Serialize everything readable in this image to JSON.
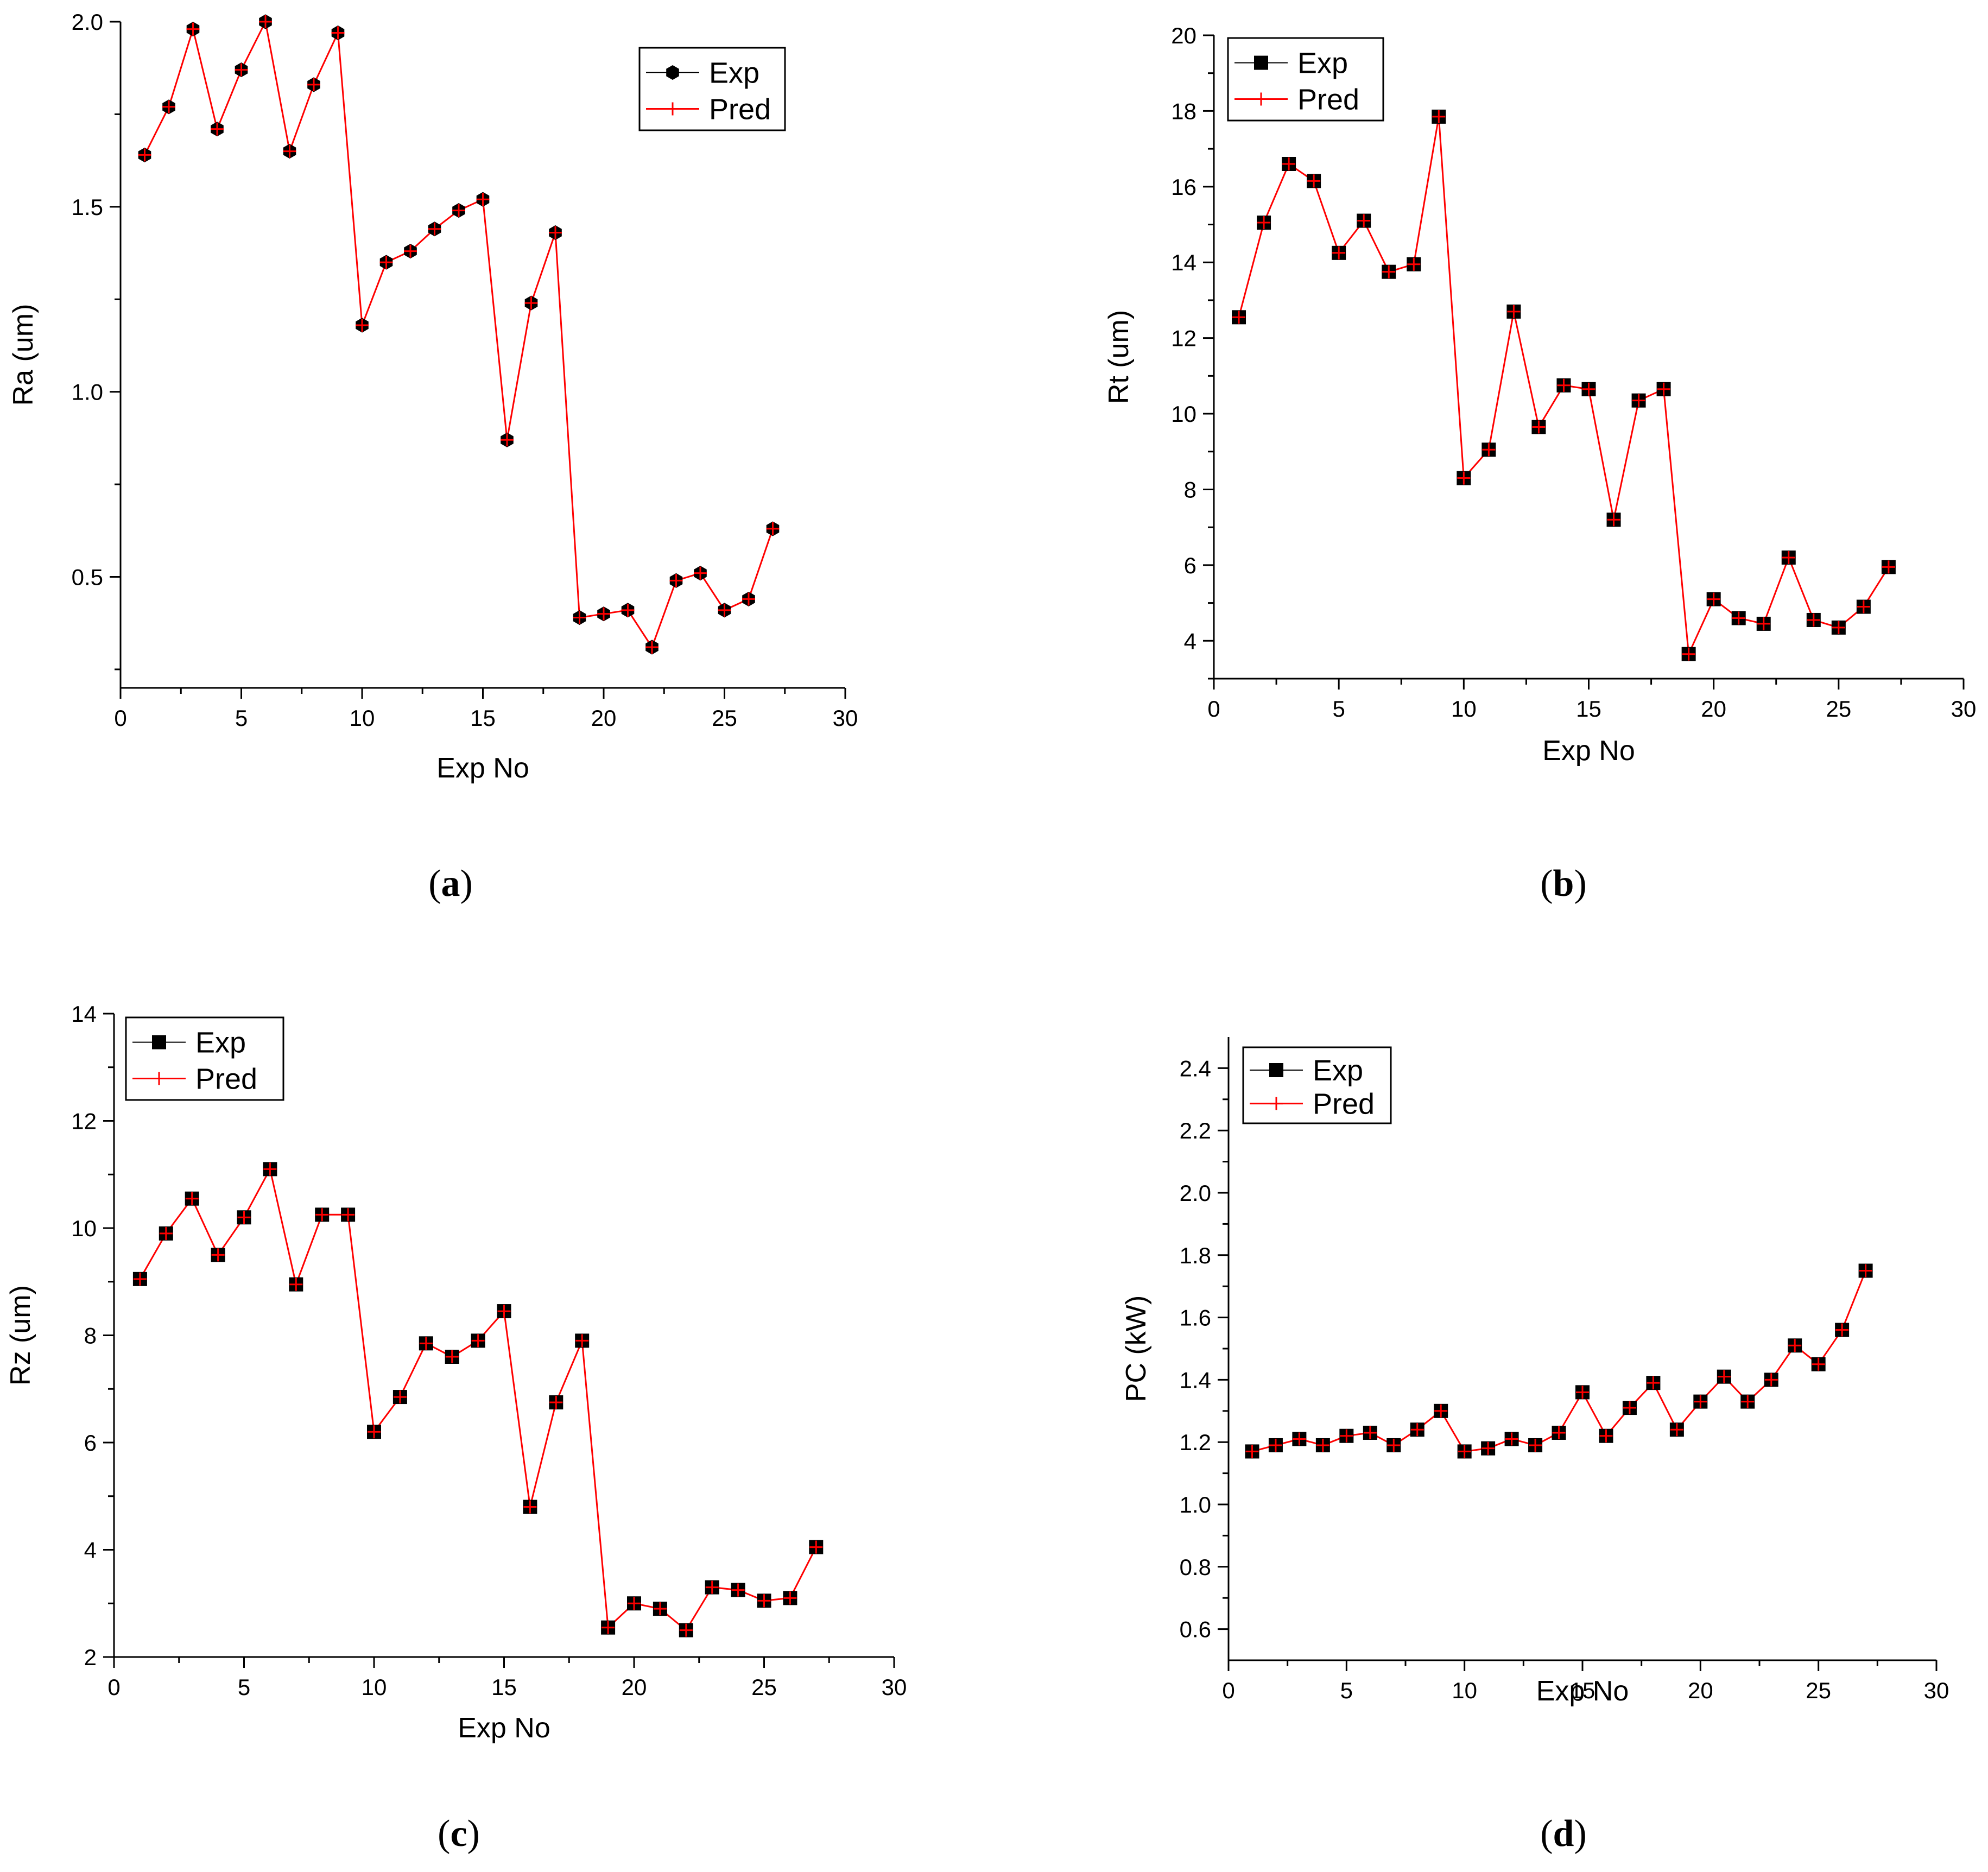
{
  "figure": {
    "colors": {
      "exp_marker": "#000000",
      "exp_line": "#000000",
      "pred": "#ff0000"
    }
  },
  "chart_data": [
    {
      "id": "a",
      "type": "line",
      "caption": "a",
      "xlabel": "Exp No",
      "ylabel": "Ra (um)",
      "xlim": [
        0,
        30
      ],
      "ylim": [
        0.2,
        2.0
      ],
      "xticks": [
        "0",
        "5",
        "10",
        "15",
        "20",
        "25",
        "30"
      ],
      "xtick_values": [
        0,
        5,
        10,
        15,
        20,
        25,
        30
      ],
      "yticks": [
        "0.5",
        "1.0",
        "1.5",
        "2.0"
      ],
      "ytick_values": [
        0.5,
        1.0,
        1.5,
        2.0
      ],
      "marker": "hexagon",
      "legend": [
        "Exp",
        "Pred"
      ],
      "x": [
        1,
        2,
        3,
        4,
        5,
        6,
        7,
        8,
        9,
        10,
        11,
        12,
        13,
        14,
        15,
        16,
        17,
        18,
        19,
        20,
        21,
        22,
        23,
        24,
        25,
        26,
        27
      ],
      "series": [
        {
          "name": "Exp",
          "values": [
            1.64,
            1.77,
            1.98,
            1.71,
            1.87,
            2.0,
            1.65,
            1.83,
            1.97,
            1.18,
            1.35,
            1.38,
            1.44,
            1.49,
            1.52,
            0.87,
            1.24,
            1.43,
            0.39,
            0.4,
            0.41,
            0.31,
            0.49,
            0.51,
            0.41,
            0.44,
            0.63
          ]
        },
        {
          "name": "Pred",
          "values": [
            1.64,
            1.77,
            1.98,
            1.71,
            1.87,
            2.0,
            1.65,
            1.83,
            1.97,
            1.18,
            1.35,
            1.38,
            1.44,
            1.49,
            1.52,
            0.87,
            1.24,
            1.43,
            0.39,
            0.4,
            0.41,
            0.31,
            0.49,
            0.51,
            0.41,
            0.44,
            0.63
          ]
        }
      ]
    },
    {
      "id": "b",
      "type": "line",
      "caption": "b",
      "xlabel": "Exp No",
      "ylabel": "Rt (um)",
      "xlim": [
        0,
        30
      ],
      "ylim": [
        3,
        20
      ],
      "xticks": [
        "0",
        "5",
        "10",
        "15",
        "20",
        "25",
        "30"
      ],
      "xtick_values": [
        0,
        5,
        10,
        15,
        20,
        25,
        30
      ],
      "yticks": [
        "4",
        "6",
        "8",
        "10",
        "12",
        "14",
        "16",
        "18",
        "20"
      ],
      "ytick_values": [
        4,
        6,
        8,
        10,
        12,
        14,
        16,
        18,
        20
      ],
      "marker": "square",
      "legend": [
        "Exp",
        "Pred"
      ],
      "x": [
        1,
        2,
        3,
        4,
        5,
        6,
        7,
        8,
        9,
        10,
        11,
        12,
        13,
        14,
        15,
        16,
        17,
        18,
        19,
        20,
        21,
        22,
        23,
        24,
        25,
        26,
        27
      ],
      "series": [
        {
          "name": "Exp",
          "values": [
            12.55,
            15.05,
            16.6,
            16.15,
            14.25,
            15.1,
            13.75,
            13.95,
            17.85,
            8.3,
            9.05,
            12.7,
            9.65,
            10.75,
            10.65,
            7.2,
            10.35,
            10.65,
            3.65,
            5.1,
            4.6,
            4.45,
            6.2,
            4.55,
            4.35,
            4.9,
            5.95
          ]
        },
        {
          "name": "Pred",
          "values": [
            12.55,
            15.05,
            16.6,
            16.15,
            14.25,
            15.1,
            13.75,
            13.95,
            17.85,
            8.3,
            9.05,
            12.7,
            9.65,
            10.75,
            10.65,
            7.2,
            10.35,
            10.65,
            3.65,
            5.1,
            4.6,
            4.45,
            6.2,
            4.55,
            4.35,
            4.9,
            5.95
          ]
        }
      ]
    },
    {
      "id": "c",
      "type": "line",
      "caption": "c",
      "xlabel": "Exp No",
      "ylabel": "Rz (um)",
      "xlim": [
        0,
        30
      ],
      "ylim": [
        2,
        14
      ],
      "xticks": [
        "0",
        "5",
        "10",
        "15",
        "20",
        "25",
        "30"
      ],
      "xtick_values": [
        0,
        5,
        10,
        15,
        20,
        25,
        30
      ],
      "yticks": [
        "2",
        "4",
        "6",
        "8",
        "10",
        "12",
        "14"
      ],
      "ytick_values": [
        2,
        4,
        6,
        8,
        10,
        12,
        14
      ],
      "marker": "square",
      "legend": [
        "Exp",
        "Pred"
      ],
      "x": [
        1,
        2,
        3,
        4,
        5,
        6,
        7,
        8,
        9,
        10,
        11,
        12,
        13,
        14,
        15,
        16,
        17,
        18,
        19,
        20,
        21,
        22,
        23,
        24,
        25,
        26,
        27
      ],
      "series": [
        {
          "name": "Exp",
          "values": [
            9.05,
            9.9,
            10.55,
            9.5,
            10.2,
            11.1,
            8.95,
            10.25,
            10.25,
            6.2,
            6.85,
            7.85,
            7.6,
            7.9,
            8.45,
            4.8,
            6.75,
            7.9,
            2.55,
            3.0,
            2.9,
            2.5,
            3.3,
            3.25,
            3.05,
            3.1,
            4.05
          ]
        },
        {
          "name": "Pred",
          "values": [
            9.05,
            9.9,
            10.55,
            9.5,
            10.2,
            11.1,
            8.95,
            10.25,
            10.25,
            6.2,
            6.85,
            7.85,
            7.6,
            7.9,
            8.45,
            4.8,
            6.75,
            7.9,
            2.55,
            3.0,
            2.9,
            2.5,
            3.3,
            3.25,
            3.05,
            3.1,
            4.05
          ]
        }
      ]
    },
    {
      "id": "d",
      "type": "line",
      "caption": "d",
      "xlabel": "Exp No",
      "ylabel": "PC (kW)",
      "xlim": [
        0,
        30
      ],
      "ylim": [
        0.5,
        2.5
      ],
      "xticks": [
        "0",
        "5",
        "10",
        "15",
        "20",
        "25",
        "30"
      ],
      "xtick_values": [
        0,
        5,
        10,
        15,
        20,
        25,
        30
      ],
      "yticks": [
        "0.6",
        "0.8",
        "1.0",
        "1.2",
        "1.4",
        "1.6",
        "1.8",
        "2.0",
        "2.2",
        "2.4"
      ],
      "ytick_values": [
        0.6,
        0.8,
        1.0,
        1.2,
        1.4,
        1.6,
        1.8,
        2.0,
        2.2,
        2.4
      ],
      "marker": "square",
      "legend": [
        "Exp",
        "Pred"
      ],
      "x": [
        1,
        2,
        3,
        4,
        5,
        6,
        7,
        8,
        9,
        10,
        11,
        12,
        13,
        14,
        15,
        16,
        17,
        18,
        19,
        20,
        21,
        22,
        23,
        24,
        25,
        26,
        27
      ],
      "series": [
        {
          "name": "Exp",
          "values": [
            1.17,
            1.19,
            1.21,
            1.19,
            1.22,
            1.23,
            1.19,
            1.24,
            1.3,
            1.17,
            1.18,
            1.21,
            1.19,
            1.23,
            1.36,
            1.22,
            1.31,
            1.39,
            1.24,
            1.33,
            1.41,
            1.33,
            1.4,
            1.51,
            1.45,
            1.56,
            1.75
          ]
        },
        {
          "name": "Pred",
          "values": [
            1.17,
            1.19,
            1.21,
            1.19,
            1.22,
            1.23,
            1.19,
            1.24,
            1.3,
            1.17,
            1.18,
            1.21,
            1.19,
            1.23,
            1.36,
            1.22,
            1.31,
            1.39,
            1.24,
            1.33,
            1.41,
            1.33,
            1.4,
            1.51,
            1.45,
            1.56,
            1.75
          ]
        }
      ]
    }
  ]
}
